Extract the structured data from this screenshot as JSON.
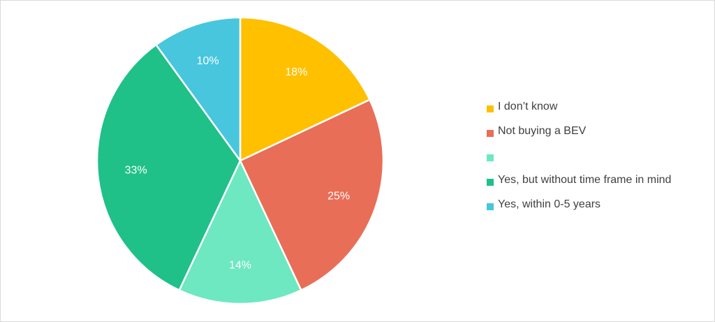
{
  "chart_data": {
    "type": "pie",
    "title": "",
    "legend_position": "right",
    "slices": [
      {
        "name": "I don’t know",
        "value": 18,
        "label": "18%",
        "color": "#FFC000"
      },
      {
        "name": "Not buying a BEV",
        "value": 25,
        "label": "25%",
        "color": "#E96E57"
      },
      {
        "name": "",
        "value": 14,
        "label": "14%",
        "color": "#6DE8C1"
      },
      {
        "name": "Yes, but without time frame in mind",
        "value": 33,
        "label": "33%",
        "color": "#20C089"
      },
      {
        "name": "Yes, within 0-5 years",
        "value": 10,
        "label": "10%",
        "color": "#48C6DE"
      }
    ]
  }
}
